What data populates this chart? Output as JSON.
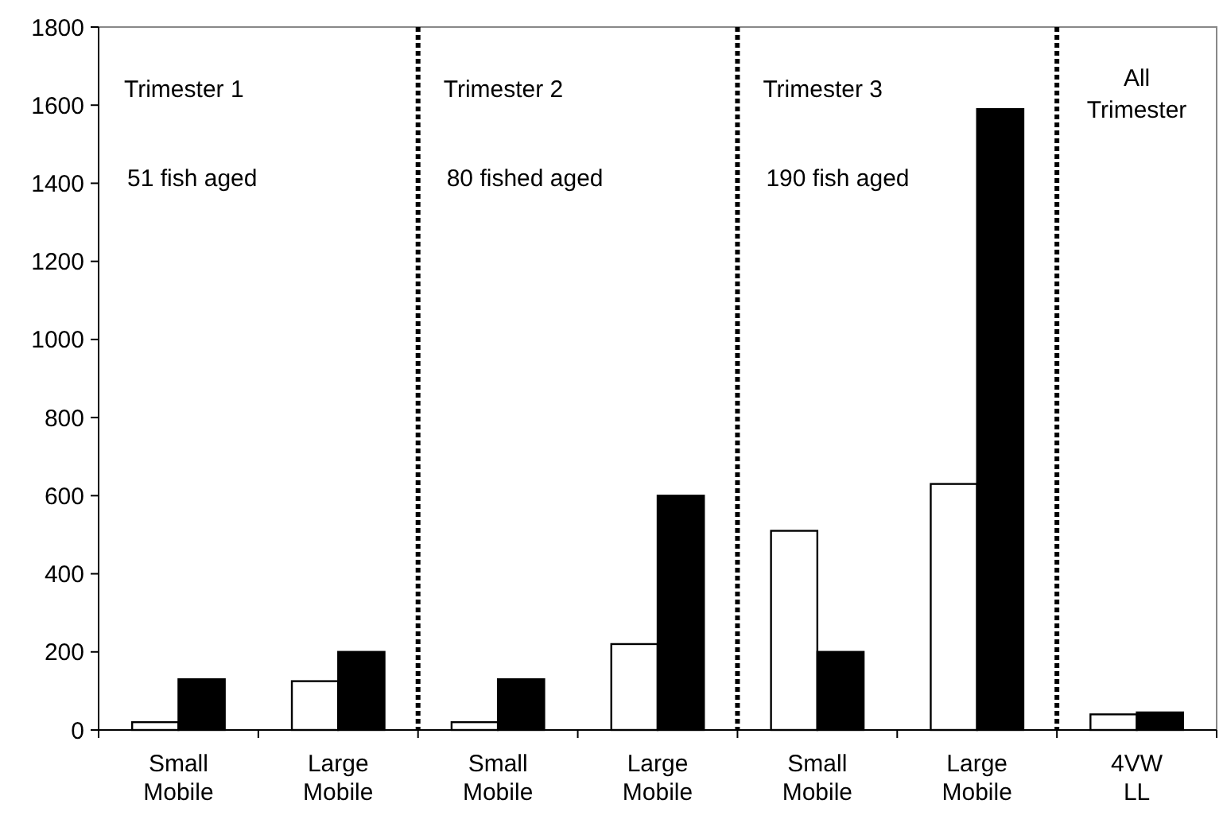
{
  "chart_data": {
    "type": "bar",
    "categories": [
      "Small Mobile",
      "Large Mobile",
      "Small Mobile",
      "Large Mobile",
      "Small Mobile",
      "Large Mobile",
      "4VW LL"
    ],
    "series": [
      {
        "color": "#ffffff",
        "values": [
          20,
          125,
          20,
          220,
          510,
          630,
          40
        ]
      },
      {
        "color": "#000000",
        "values": [
          130,
          200,
          130,
          600,
          200,
          1590,
          45
        ]
      }
    ],
    "ylim": [
      0,
      1800
    ],
    "yticks": [
      0,
      200,
      400,
      600,
      800,
      1000,
      1200,
      1400,
      1600,
      1800
    ],
    "annotations": [
      "Trimester 1",
      "51 fish aged",
      "Trimester 2",
      "80 fished aged",
      "Trimester 3",
      "190 fish aged",
      "All Trimester"
    ],
    "grid": false
  }
}
